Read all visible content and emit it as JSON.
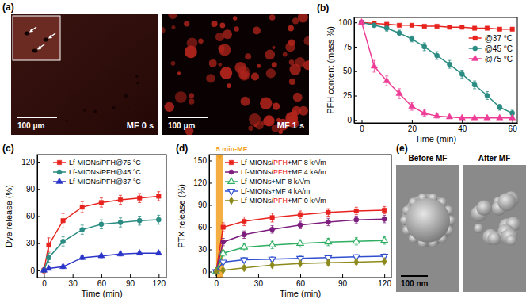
{
  "chart_data": [
    {
      "type": "line",
      "title": "(b)",
      "x_label": "Time (min)",
      "y_label": "PFH content (mass %)",
      "x": [
        0,
        5,
        10,
        15,
        20,
        25,
        30,
        35,
        40,
        45,
        50,
        55,
        60
      ],
      "xlim": [
        -3,
        62
      ],
      "xticks": [
        0,
        20,
        40,
        60
      ],
      "ylim": [
        -3,
        105
      ],
      "yticks": [
        0,
        25,
        50,
        75,
        100
      ],
      "legend": "top-right",
      "series": [
        {
          "name": "@37 °C",
          "color": "#e8231e",
          "marker": "square",
          "values": [
            100,
            99,
            98,
            97,
            97,
            96,
            96,
            95,
            95,
            94,
            94,
            93,
            93
          ],
          "errors": [
            1,
            1,
            1,
            1,
            1,
            1,
            1,
            1,
            1,
            1,
            1,
            1,
            1
          ]
        },
        {
          "name": "@45 °C",
          "color": "#2a8c82",
          "marker": "circle",
          "values": [
            100,
            97,
            94,
            89,
            83,
            75,
            66,
            57,
            47,
            36,
            25,
            13,
            7
          ],
          "errors": [
            2,
            2,
            3,
            3,
            3,
            4,
            4,
            4,
            4,
            4,
            4,
            3,
            3
          ]
        },
        {
          "name": "@75 °C",
          "color": "#ee3d96",
          "marker": "triangle",
          "values": [
            100,
            55,
            40,
            27,
            14,
            7,
            4,
            3,
            2,
            2,
            2,
            2,
            2
          ],
          "errors": [
            2,
            6,
            5,
            5,
            4,
            3,
            2,
            1,
            1,
            1,
            1,
            1,
            1
          ]
        }
      ]
    },
    {
      "type": "line",
      "title": "(c)",
      "x_label": "Time (min)",
      "y_label": "Dye release (%)",
      "x": [
        0,
        5,
        20,
        40,
        60,
        80,
        100,
        120
      ],
      "xlim": [
        -7,
        128
      ],
      "xticks": [
        0,
        30,
        60,
        90,
        120
      ],
      "ylim": [
        -8,
        128
      ],
      "yticks": [
        0,
        30,
        60,
        90,
        120
      ],
      "legend": "top-left",
      "series": [
        {
          "name": "Lf-MIONs/PFH@75 °C",
          "color": "#e8231e",
          "marker": "square",
          "values": [
            0,
            28,
            55,
            70,
            75,
            78,
            80,
            82
          ],
          "errors": [
            3,
            8,
            8,
            6,
            5,
            5,
            5,
            5
          ]
        },
        {
          "name": "Lf-MIONs/PFH@45 °C",
          "color": "#2a8c82",
          "marker": "circle",
          "values": [
            0,
            14,
            32,
            45,
            51,
            53,
            55,
            56
          ],
          "errors": [
            2,
            5,
            5,
            5,
            5,
            5,
            5,
            5
          ]
        },
        {
          "name": "Lf-MIONs/PFH@37 °C",
          "color": "#2a35c8",
          "marker": "triangle",
          "values": [
            0,
            2,
            4,
            14,
            16,
            18,
            19,
            19
          ],
          "errors": [
            1,
            1,
            2,
            2,
            2,
            2,
            2,
            2
          ]
        }
      ]
    },
    {
      "type": "line",
      "title": "(d)",
      "x_label": "Time (min)",
      "y_label": "PTX release (%)",
      "x": [
        0,
        5,
        20,
        40,
        60,
        80,
        100,
        120
      ],
      "xlim": [
        -5,
        125
      ],
      "xticks": [
        0,
        30,
        60,
        90,
        120
      ],
      "ylim": [
        -8,
        158
      ],
      "yticks": [
        0,
        30,
        60,
        90,
        120,
        150
      ],
      "legend": "top-left",
      "annotations": [
        {
          "text": "5 min-MF",
          "x_start": 0,
          "x_end": 5,
          "color": "#f2a020"
        }
      ],
      "series": [
        {
          "name": "Lf-MIONs/PFH+MF 8 kA/m",
          "color": "#e8231e",
          "marker": "square",
          "values": [
            0,
            60,
            68,
            73,
            77,
            80,
            82,
            83
          ],
          "errors": [
            0,
            6,
            6,
            6,
            5,
            5,
            5,
            5
          ]
        },
        {
          "name": "Lf-MIONs/PFH+MF 4 kA/m",
          "color": "#7d1d7d",
          "marker": "circle",
          "values": [
            0,
            40,
            50,
            57,
            63,
            67,
            70,
            71
          ],
          "errors": [
            0,
            5,
            5,
            5,
            5,
            5,
            5,
            5
          ]
        },
        {
          "name": "Lf-MIONs+MF 8 kA/m",
          "color": "#2fae62",
          "marker": "open-triangle",
          "values": [
            0,
            25,
            33,
            36,
            38,
            40,
            41,
            42
          ],
          "errors": [
            0,
            4,
            5,
            5,
            5,
            5,
            5,
            5
          ]
        },
        {
          "name": "Lf-MIONs+MF 4 kA/m",
          "color": "#2f4fd0",
          "marker": "open-triangle-down",
          "values": [
            0,
            13,
            16,
            17,
            18,
            19,
            20,
            21
          ],
          "errors": [
            0,
            2,
            3,
            3,
            3,
            3,
            3,
            3
          ]
        },
        {
          "name": "Lf-MIONs/PFH+MF 0 kA/m",
          "color": "#8c8a1c",
          "marker": "diamond",
          "values": [
            0,
            2,
            5,
            9,
            11,
            12,
            13,
            14
          ],
          "errors": [
            0,
            2,
            3,
            3,
            3,
            3,
            3,
            3
          ]
        }
      ]
    }
  ],
  "images": [
    {
      "title": "(a)",
      "frames": [
        {
          "caption": "MF 0 s",
          "scale_bar": "100 μm"
        },
        {
          "caption": "MF 1 s",
          "scale_bar": "100 μm"
        }
      ]
    },
    {
      "title": "(e)",
      "frames": [
        {
          "caption": "Before MF",
          "scale_bar": "100 nm"
        },
        {
          "caption": "After MF"
        }
      ]
    }
  ]
}
